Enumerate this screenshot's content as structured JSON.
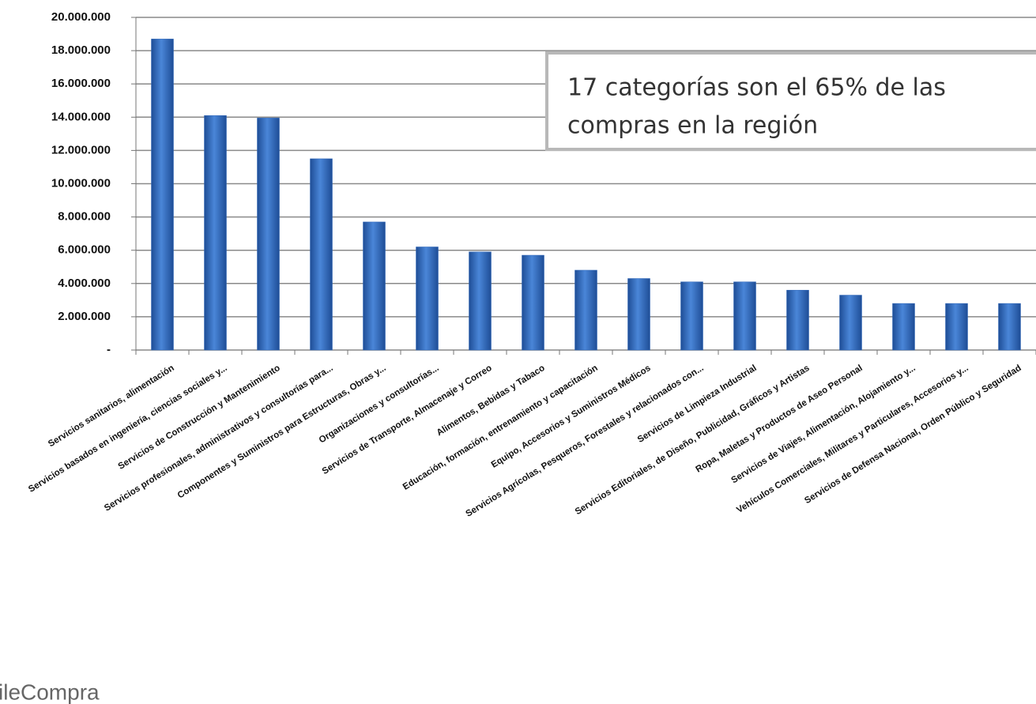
{
  "chart_data": {
    "type": "bar",
    "annotation": [
      "17 categorías son el 65% de las",
      "compras en la región"
    ],
    "logo": "ileCompra",
    "categories": [
      "Servicios sanitarios, alimentación",
      "Servicios basados en ingeniería, ciencias sociales y...",
      "Servicios de Construcción y Mantenimiento",
      "Servicios profesionales, administrativos y consultorías para...",
      "Componentes y Suministros para Estructuras, Obras y...",
      "Organizaciones y consultorías...",
      "Servicios de Transporte, Almacenaje y Correo",
      "Alimentos, Bebidas y Tabaco",
      "Educación, formación, entrenamiento y capacitación",
      "Equipo, Accesorios y Suministros Médicos",
      "Servicios Agrícolas, Pesqueros, Forestales y relacionados con...",
      "Servicios de Limpieza Industrial",
      "Servicios Editoriales, de Diseño, Publicidad, Gráficos y Artistas",
      "Ropa, Maletas y Productos de Aseo Personal",
      "Servicios de Viajes, Alimentación, Alojamiento y...",
      "Vehículos Comerciales, Militares y Particulares, Accesorios y...",
      "Servicios de Defensa Nacional, Orden Público y Seguridad"
    ],
    "values": [
      18700000,
      14100000,
      13950000,
      11500000,
      7700000,
      6200000,
      5900000,
      5700000,
      4800000,
      4300000,
      4100000,
      4100000,
      3600000,
      3300000,
      2800000,
      2800000,
      2800000
    ],
    "color": "#2f66b8",
    "ylim": [
      0,
      20000000
    ],
    "yticks": [
      {
        "value": 0,
        "label": "-"
      },
      {
        "value": 2000000,
        "label": "2.000.000"
      },
      {
        "value": 4000000,
        "label": "4.000.000"
      },
      {
        "value": 6000000,
        "label": "6.000.000"
      },
      {
        "value": 8000000,
        "label": "8.000.000"
      },
      {
        "value": 10000000,
        "label": "10.000.000"
      },
      {
        "value": 12000000,
        "label": "12.000.000"
      },
      {
        "value": 14000000,
        "label": "14.000.000"
      },
      {
        "value": 16000000,
        "label": "16.000.000"
      },
      {
        "value": 18000000,
        "label": "18.000.000"
      },
      {
        "value": 20000000,
        "label": "20.000.000"
      }
    ],
    "grid": true
  }
}
